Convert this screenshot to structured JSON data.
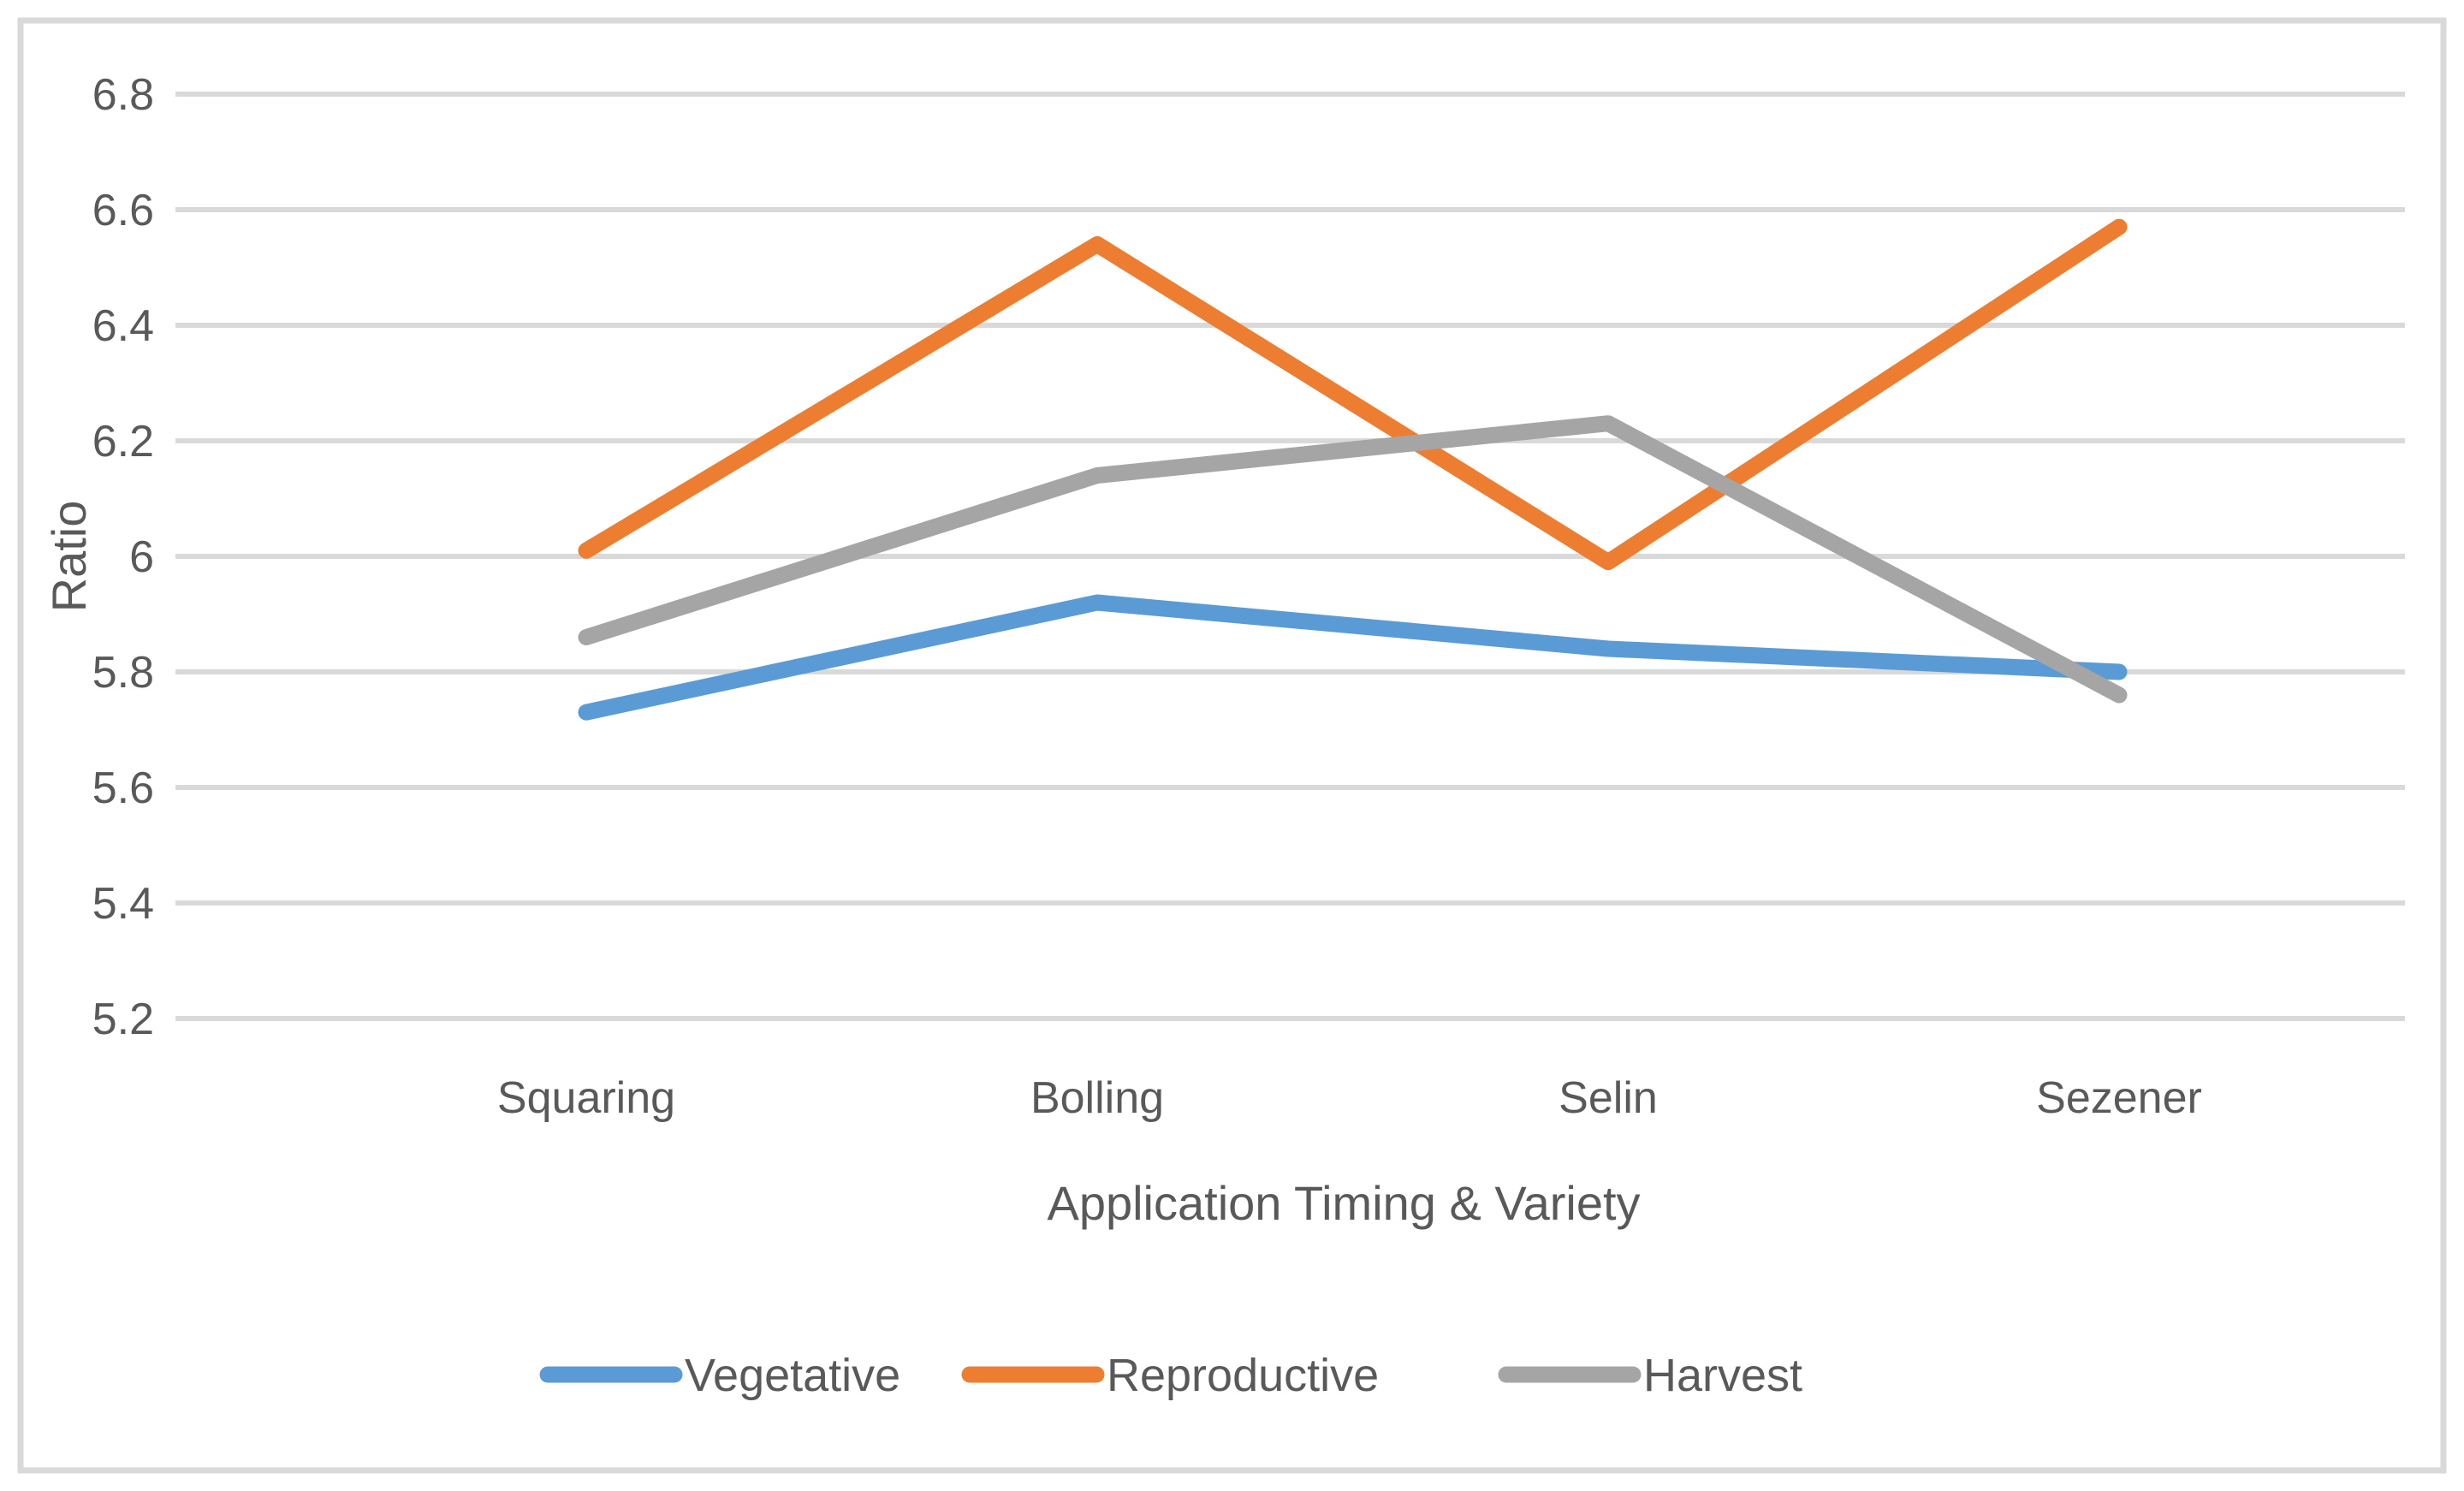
{
  "figure": {
    "background_color": "#FFFFFF",
    "border_color": "#D9D9D9",
    "gridline_color": "#D9D9D9",
    "text_color": "#595959"
  },
  "chart_data": {
    "type": "line",
    "title": "",
    "categories": [
      "Squaring",
      "Bolling",
      "Selin",
      "Sezener"
    ],
    "series": [
      {
        "name": "Vegetative",
        "color": "#5B9BD5",
        "values": [
          5.73,
          5.92,
          5.84,
          5.8
        ]
      },
      {
        "name": "Reproductive",
        "color": "#ED7D31",
        "values": [
          6.01,
          6.54,
          5.99,
          6.57
        ]
      },
      {
        "name": "Harvest",
        "color": "#A5A5A5",
        "values": [
          5.86,
          6.14,
          6.23,
          5.76
        ]
      }
    ],
    "xlabel": "Application Timing & Variety",
    "ylabel": "Ratio",
    "ylim": [
      5.2,
      6.8
    ],
    "ytick_step": 0.2,
    "ytick_labels": [
      "5.2",
      "5.4",
      "5.6",
      "5.8",
      "6",
      "6.2",
      "6.4",
      "6.6",
      "6.8"
    ],
    "grid": "horizontal",
    "legend_position": "bottom",
    "legend": [
      "Vegetative",
      "Reproductive",
      "Harvest"
    ]
  }
}
